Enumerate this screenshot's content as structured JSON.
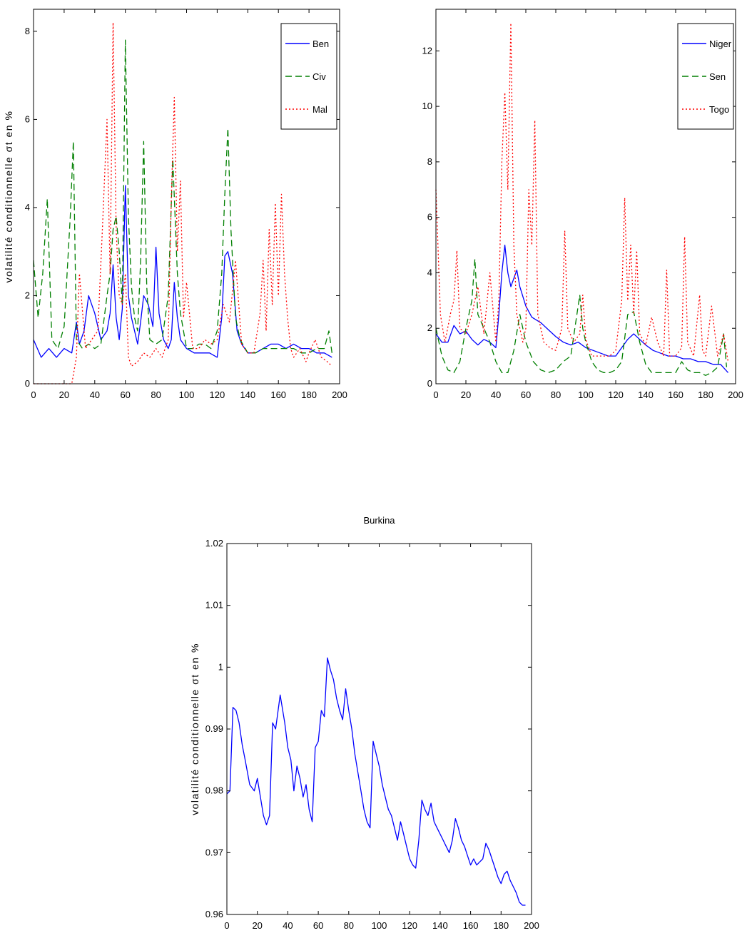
{
  "chart_data": [
    {
      "type": "line",
      "title": "",
      "xlabel": "",
      "ylabel": "volatilité conditionnelle σt en %",
      "xlim": [
        0,
        200
      ],
      "ylim": [
        0,
        8.5
      ],
      "xticks": [
        0,
        20,
        40,
        60,
        80,
        100,
        120,
        140,
        160,
        180,
        200
      ],
      "yticks": [
        0,
        2,
        4,
        6,
        8
      ],
      "legend": "top-right",
      "grid": false,
      "series": [
        {
          "name": "Ben",
          "color": "#0000ff",
          "style": "solid",
          "x": [
            0,
            5,
            10,
            15,
            20,
            25,
            28,
            30,
            33,
            36,
            40,
            44,
            48,
            50,
            52,
            54,
            56,
            58,
            60,
            62,
            64,
            66,
            68,
            70,
            72,
            75,
            78,
            80,
            82,
            85,
            88,
            90,
            92,
            94,
            96,
            100,
            105,
            110,
            115,
            120,
            123,
            125,
            127,
            130,
            133,
            136,
            140,
            145,
            150,
            155,
            160,
            165,
            170,
            175,
            180,
            185,
            190,
            195
          ],
          "y": [
            1.0,
            0.6,
            0.8,
            0.6,
            0.8,
            0.7,
            1.4,
            0.9,
            1.2,
            2.0,
            1.6,
            1.0,
            1.2,
            1.6,
            2.7,
            1.5,
            1.0,
            1.7,
            4.5,
            2.0,
            1.5,
            1.2,
            0.9,
            1.4,
            2.0,
            1.8,
            1.3,
            3.1,
            1.6,
            1.0,
            0.8,
            1.0,
            2.3,
            1.5,
            1.0,
            0.8,
            0.7,
            0.7,
            0.7,
            0.6,
            1.5,
            2.9,
            3.0,
            2.5,
            1.2,
            0.9,
            0.7,
            0.7,
            0.8,
            0.9,
            0.9,
            0.8,
            0.9,
            0.8,
            0.8,
            0.7,
            0.7,
            0.6
          ]
        },
        {
          "name": "Civ",
          "color": "#007f00",
          "style": "dashed",
          "x": [
            0,
            3,
            6,
            9,
            12,
            16,
            20,
            24,
            26,
            28,
            32,
            36,
            40,
            44,
            48,
            50,
            52,
            54,
            56,
            58,
            60,
            62,
            64,
            66,
            68,
            70,
            72,
            74,
            76,
            80,
            84,
            88,
            91,
            94,
            96,
            100,
            104,
            108,
            112,
            116,
            120,
            123,
            125,
            127,
            129,
            132,
            135,
            140,
            145,
            150,
            155,
            160,
            165,
            170,
            175,
            180,
            185,
            190,
            193,
            195
          ],
          "y": [
            2.8,
            1.5,
            2.5,
            4.2,
            1.0,
            0.8,
            1.3,
            3.8,
            5.5,
            1.0,
            0.8,
            0.9,
            0.8,
            0.9,
            2.0,
            2.5,
            3.5,
            3.8,
            3.0,
            1.8,
            7.8,
            3.8,
            2.2,
            1.5,
            1.2,
            2.8,
            5.5,
            2.2,
            1.0,
            0.9,
            1.0,
            2.0,
            5.1,
            2.5,
            1.6,
            0.8,
            0.8,
            0.9,
            0.9,
            0.8,
            1.2,
            2.5,
            4.3,
            5.8,
            3.5,
            1.5,
            1.0,
            0.7,
            0.7,
            0.8,
            0.8,
            0.8,
            0.8,
            0.8,
            0.7,
            0.7,
            0.8,
            0.8,
            1.2,
            0.7
          ]
        },
        {
          "name": "Mal",
          "color": "#ff0000",
          "style": "dotted",
          "x": [
            0,
            10,
            20,
            25,
            28,
            30,
            34,
            38,
            42,
            45,
            48,
            50,
            52,
            54,
            56,
            58,
            60,
            62,
            64,
            68,
            72,
            76,
            80,
            84,
            88,
            90,
            92,
            94,
            96,
            98,
            100,
            104,
            108,
            112,
            116,
            120,
            124,
            128,
            132,
            136,
            140,
            144,
            148,
            150,
            152,
            154,
            156,
            158,
            160,
            162,
            164,
            166,
            168,
            170,
            174,
            178,
            180,
            184,
            188,
            192,
            195
          ],
          "y": [
            0.0,
            0.0,
            0.0,
            0.0,
            0.6,
            2.5,
            0.8,
            1.0,
            1.2,
            3.5,
            6.0,
            2.5,
            8.2,
            3.5,
            2.0,
            1.8,
            2.5,
            0.6,
            0.4,
            0.5,
            0.7,
            0.6,
            0.8,
            0.6,
            1.0,
            4.2,
            6.5,
            3.0,
            4.6,
            1.5,
            2.3,
            0.8,
            0.8,
            1.0,
            0.9,
            1.0,
            1.8,
            1.4,
            2.8,
            0.9,
            0.7,
            0.7,
            1.6,
            2.8,
            1.2,
            3.5,
            1.8,
            4.1,
            2.0,
            4.3,
            2.5,
            1.5,
            0.8,
            0.6,
            0.8,
            0.5,
            0.7,
            1.0,
            0.6,
            0.5,
            0.4
          ]
        }
      ]
    },
    {
      "type": "line",
      "title": "",
      "xlabel": "",
      "ylabel": "",
      "xlim": [
        0,
        200
      ],
      "ylim": [
        0,
        13.5
      ],
      "xticks": [
        0,
        20,
        40,
        60,
        80,
        100,
        120,
        140,
        160,
        180,
        200
      ],
      "yticks": [
        0,
        2,
        4,
        6,
        8,
        10,
        12
      ],
      "legend": "top-right",
      "grid": false,
      "series": [
        {
          "name": "Niger",
          "color": "#0000ff",
          "style": "solid",
          "x": [
            0,
            4,
            8,
            12,
            16,
            20,
            24,
            28,
            32,
            36,
            40,
            42,
            44,
            46,
            48,
            50,
            52,
            54,
            56,
            60,
            64,
            70,
            76,
            80,
            85,
            90,
            95,
            100,
            105,
            110,
            115,
            120,
            124,
            128,
            132,
            136,
            140,
            145,
            150,
            155,
            160,
            165,
            170,
            175,
            180,
            185,
            190,
            195
          ],
          "y": [
            1.8,
            1.5,
            1.5,
            2.1,
            1.8,
            1.9,
            1.6,
            1.4,
            1.6,
            1.5,
            1.3,
            2.5,
            4.0,
            5.0,
            4.0,
            3.5,
            3.8,
            4.1,
            3.5,
            2.8,
            2.4,
            2.2,
            1.9,
            1.7,
            1.5,
            1.4,
            1.5,
            1.3,
            1.2,
            1.1,
            1.0,
            1.0,
            1.3,
            1.6,
            1.8,
            1.6,
            1.4,
            1.2,
            1.1,
            1.0,
            1.0,
            0.9,
            0.9,
            0.8,
            0.8,
            0.7,
            0.7,
            0.4
          ]
        },
        {
          "name": "Sen",
          "color": "#007f00",
          "style": "dashed",
          "x": [
            0,
            4,
            8,
            12,
            16,
            20,
            24,
            26,
            28,
            32,
            36,
            40,
            44,
            48,
            52,
            56,
            60,
            65,
            70,
            75,
            80,
            85,
            90,
            96,
            98,
            100,
            104,
            108,
            112,
            116,
            120,
            124,
            128,
            132,
            136,
            140,
            144,
            148,
            152,
            156,
            160,
            164,
            168,
            172,
            176,
            180,
            184,
            188,
            192,
            194
          ],
          "y": [
            2.0,
            1.0,
            0.5,
            0.4,
            0.8,
            2.0,
            3.0,
            4.5,
            2.5,
            2.0,
            1.5,
            0.8,
            0.4,
            0.4,
            1.2,
            2.5,
            1.5,
            0.8,
            0.5,
            0.4,
            0.5,
            0.8,
            1.0,
            3.2,
            2.0,
            1.5,
            0.8,
            0.5,
            0.4,
            0.4,
            0.5,
            0.8,
            2.5,
            2.6,
            1.5,
            0.7,
            0.4,
            0.4,
            0.4,
            0.4,
            0.4,
            0.8,
            0.5,
            0.4,
            0.4,
            0.3,
            0.4,
            0.6,
            1.8,
            0.6
          ]
        },
        {
          "name": "Togo",
          "color": "#ff0000",
          "style": "dotted",
          "x": [
            0,
            3,
            6,
            10,
            12,
            14,
            16,
            20,
            24,
            28,
            32,
            36,
            40,
            42,
            44,
            46,
            48,
            50,
            52,
            54,
            56,
            58,
            60,
            62,
            64,
            66,
            68,
            72,
            76,
            80,
            84,
            86,
            88,
            92,
            96,
            98,
            100,
            104,
            108,
            112,
            116,
            120,
            124,
            126,
            128,
            130,
            132,
            134,
            136,
            140,
            144,
            148,
            152,
            154,
            156,
            160,
            164,
            166,
            168,
            172,
            176,
            178,
            180,
            184,
            188,
            192,
            195
          ],
          "y": [
            7.0,
            2.5,
            1.5,
            2.6,
            3.0,
            4.8,
            2.0,
            1.8,
            2.5,
            3.5,
            1.8,
            4.0,
            1.5,
            3.0,
            8.0,
            10.5,
            7.0,
            13.0,
            5.0,
            2.5,
            2.0,
            1.5,
            2.0,
            7.0,
            5.0,
            9.5,
            2.5,
            1.5,
            1.3,
            1.2,
            2.0,
            5.5,
            2.0,
            1.5,
            1.8,
            3.2,
            1.6,
            1.0,
            1.0,
            1.0,
            1.0,
            1.2,
            3.0,
            6.7,
            3.0,
            5.0,
            2.5,
            4.8,
            1.8,
            1.4,
            2.4,
            1.5,
            1.0,
            4.1,
            1.0,
            1.0,
            1.3,
            5.3,
            1.5,
            1.0,
            3.2,
            1.2,
            1.0,
            2.8,
            1.0,
            1.8,
            0.8
          ]
        }
      ]
    },
    {
      "type": "line",
      "title": "Burkina",
      "xlabel": "",
      "ylabel": "volatilité conditionnelle σt en %",
      "xlim": [
        0,
        200
      ],
      "ylim": [
        0.96,
        1.02
      ],
      "xticks": [
        0,
        20,
        40,
        60,
        80,
        100,
        120,
        140,
        160,
        180,
        200
      ],
      "yticks": [
        "0.96",
        "0.97",
        "0.98",
        "0.99",
        "1",
        "1.01",
        "1.02"
      ],
      "legend": "none",
      "grid": false,
      "series": [
        {
          "color": "#0000ff",
          "style": "solid",
          "x": [
            0,
            2,
            4,
            6,
            8,
            10,
            12,
            15,
            18,
            20,
            22,
            24,
            26,
            28,
            30,
            32,
            35,
            38,
            40,
            42,
            44,
            46,
            48,
            50,
            52,
            54,
            56,
            58,
            60,
            62,
            64,
            66,
            68,
            70,
            72,
            74,
            76,
            78,
            80,
            82,
            84,
            86,
            88,
            90,
            92,
            94,
            96,
            98,
            100,
            102,
            104,
            106,
            108,
            110,
            112,
            114,
            116,
            118,
            120,
            122,
            124,
            126,
            128,
            130,
            132,
            134,
            136,
            138,
            140,
            142,
            144,
            146,
            148,
            150,
            152,
            154,
            156,
            158,
            160,
            162,
            164,
            166,
            168,
            170,
            172,
            174,
            176,
            178,
            180,
            182,
            184,
            186,
            188,
            190,
            192,
            194,
            196
          ],
          "y": [
            0.9795,
            0.98,
            0.9935,
            0.993,
            0.991,
            0.9875,
            0.985,
            0.981,
            0.98,
            0.982,
            0.979,
            0.976,
            0.9745,
            0.976,
            0.991,
            0.99,
            0.9955,
            0.991,
            0.987,
            0.985,
            0.98,
            0.984,
            0.982,
            0.979,
            0.981,
            0.977,
            0.975,
            0.987,
            0.988,
            0.993,
            0.992,
            1.0015,
            0.9995,
            0.998,
            0.995,
            0.993,
            0.9915,
            0.9965,
            0.993,
            0.99,
            0.986,
            0.983,
            0.98,
            0.977,
            0.975,
            0.974,
            0.988,
            0.986,
            0.984,
            0.981,
            0.979,
            0.977,
            0.976,
            0.974,
            0.972,
            0.975,
            0.973,
            0.971,
            0.969,
            0.968,
            0.9675,
            0.972,
            0.9785,
            0.977,
            0.976,
            0.978,
            0.975,
            0.974,
            0.973,
            0.972,
            0.971,
            0.97,
            0.972,
            0.9755,
            0.974,
            0.972,
            0.971,
            0.9695,
            0.968,
            0.969,
            0.968,
            0.9685,
            0.969,
            0.9715,
            0.9705,
            0.969,
            0.9675,
            0.966,
            0.965,
            0.9665,
            0.967,
            0.9655,
            0.9645,
            0.9635,
            0.962,
            0.9615,
            0.9615
          ]
        }
      ]
    }
  ]
}
